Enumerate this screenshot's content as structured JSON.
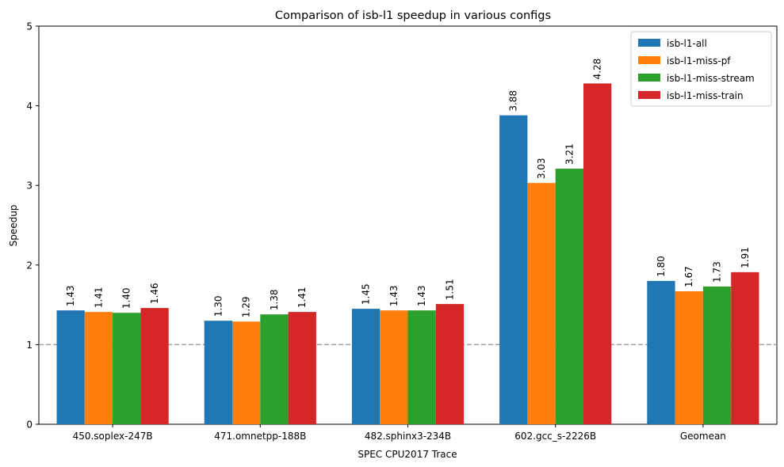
{
  "chart_data": {
    "type": "bar",
    "title": "Comparison of isb-l1 speedup in various configs",
    "xlabel": "SPEC CPU2017 Trace",
    "ylabel": "Speedup",
    "categories": [
      "450.soplex-247B",
      "471.omnetpp-188B",
      "482.sphinx3-234B",
      "602.gcc_s-2226B",
      "Geomean"
    ],
    "series": [
      {
        "name": "isb-l1-all",
        "color": "#1f77b4",
        "values": [
          1.43,
          1.3,
          1.45,
          3.88,
          1.8
        ]
      },
      {
        "name": "isb-l1-miss-pf",
        "color": "#ff7f0e",
        "values": [
          1.41,
          1.29,
          1.43,
          3.03,
          1.67
        ]
      },
      {
        "name": "isb-l1-miss-stream",
        "color": "#2ca02c",
        "values": [
          1.4,
          1.38,
          1.43,
          3.21,
          1.73
        ]
      },
      {
        "name": "isb-l1-miss-train",
        "color": "#d62728",
        "values": [
          1.46,
          1.41,
          1.51,
          4.28,
          1.91
        ]
      }
    ],
    "ylim": [
      0,
      5
    ],
    "yticks": [
      "0",
      "1",
      "2",
      "3",
      "4",
      "5"
    ],
    "reference_line": {
      "y": 1,
      "style": "dashed",
      "color": "#a0a0a0"
    },
    "grid": false,
    "legend_position": "top-right",
    "data_labels": true
  }
}
